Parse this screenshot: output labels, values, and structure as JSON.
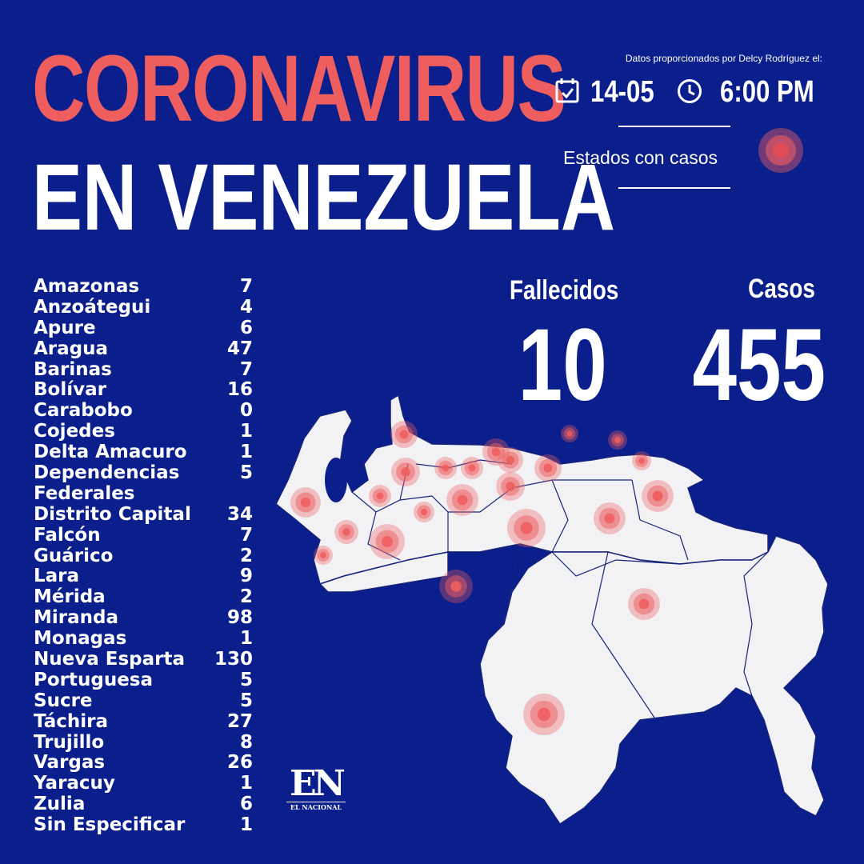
{
  "header": {
    "title_line1": "CORONAVIRUS",
    "title_line2": "EN VENEZUELA",
    "source": "Datos proporcionados por Delcy Rodríguez el:",
    "date": "14-05",
    "time": "6:00 PM",
    "date_icon": "calendar-icon",
    "time_icon": "clock-icon"
  },
  "legend": {
    "label": "Estados con casos",
    "marker_color": "#ee5e5f"
  },
  "stats": {
    "deaths_label": "Fallecidos",
    "deaths_value": "10",
    "cases_label": "Casos",
    "cases_value": "455"
  },
  "states": [
    {
      "name": "Amazonas",
      "value": "7"
    },
    {
      "name": "Anzoátegui",
      "value": "4"
    },
    {
      "name": "Apure",
      "value": "6"
    },
    {
      "name": "Aragua",
      "value": "47"
    },
    {
      "name": "Barinas",
      "value": "7"
    },
    {
      "name": "Bolívar",
      "value": "16"
    },
    {
      "name": "Carabobo",
      "value": "0"
    },
    {
      "name": "Cojedes",
      "value": "1"
    },
    {
      "name": "Delta Amacuro",
      "value": "1"
    },
    {
      "name": "Dependencias",
      "value": "5"
    },
    {
      "name": "Federales",
      "value": ""
    },
    {
      "name": "Distrito Capital",
      "value": "34"
    },
    {
      "name": "Falcón",
      "value": "7"
    },
    {
      "name": "Guárico",
      "value": "2"
    },
    {
      "name": "Lara",
      "value": "9"
    },
    {
      "name": "Mérida",
      "value": "2"
    },
    {
      "name": "Miranda",
      "value": "98"
    },
    {
      "name": "Monagas",
      "value": "1"
    },
    {
      "name": "Nueva Esparta",
      "value": "130"
    },
    {
      "name": "Portuguesa",
      "value": "5"
    },
    {
      "name": "Sucre",
      "value": "5"
    },
    {
      "name": "Táchira",
      "value": "27"
    },
    {
      "name": "Trujillo",
      "value": "8"
    },
    {
      "name": "Vargas",
      "value": "26"
    },
    {
      "name": "Yaracuy",
      "value": "1"
    },
    {
      "name": "Zulia",
      "value": "6"
    },
    {
      "name": "Sin Especificar",
      "value": "1"
    }
  ],
  "logo": {
    "mark": "EN",
    "name": "EL NACIONAL"
  },
  "colors": {
    "background": "#0b1f8c",
    "accent": "#ee5e5f",
    "map": "#f2f2f4"
  }
}
